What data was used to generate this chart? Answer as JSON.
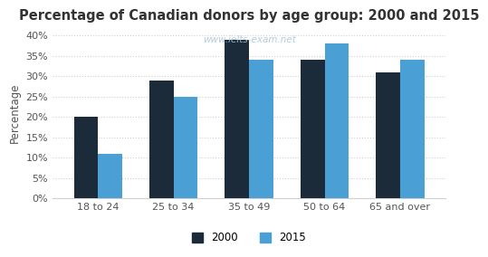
{
  "title": "Percentage of Canadian donors by age group: 2000 and 2015",
  "watermark": "www.ielts-exam.net",
  "categories": [
    "18 to 24",
    "25 to 34",
    "35 to 49",
    "50 to 64",
    "65 and over"
  ],
  "values_2000": [
    20,
    29,
    39,
    34,
    31
  ],
  "values_2015": [
    11,
    25,
    34,
    38,
    34
  ],
  "color_2000": "#1c2b3a",
  "color_2015": "#4a9fd4",
  "ylabel": "Percentage",
  "ylim": [
    0,
    42
  ],
  "ytick_vals": [
    0,
    5,
    10,
    15,
    20,
    25,
    30,
    35,
    40
  ],
  "ytick_labels": [
    "0%",
    "5%",
    "10%",
    "15%",
    "20%",
    "25%",
    "30%",
    "35%",
    "40%"
  ],
  "legend_labels": [
    "2000",
    "2015"
  ],
  "background_color": "#ffffff",
  "grid_color": "#d0d0d0",
  "title_fontsize": 10.5,
  "label_fontsize": 8.5,
  "tick_fontsize": 8,
  "legend_fontsize": 8.5,
  "bar_width": 0.32
}
